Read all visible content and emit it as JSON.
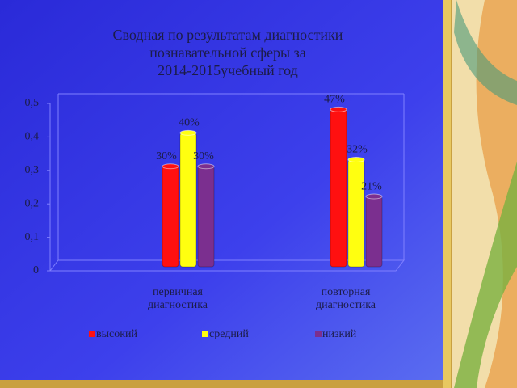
{
  "chart_data": {
    "type": "bar",
    "title": [
      "Сводная по результатам диагностики",
      "познавательной сферы за",
      "2014-2015учебный год"
    ],
    "categories": [
      "первичная диагностика",
      "повторная диагностика"
    ],
    "series": [
      {
        "name": "высокий",
        "color": "#ff1010",
        "values": [
          0.3,
          0.47
        ],
        "value_labels": [
          "30%",
          "47%"
        ]
      },
      {
        "name": "средний",
        "color": "#ffff10",
        "values": [
          0.4,
          0.32
        ],
        "value_labels": [
          "40%",
          "32%"
        ]
      },
      {
        "name": "низкий",
        "color": "#7b2f8f",
        "values": [
          0.3,
          0.21
        ],
        "value_labels": [
          "30%",
          "21%"
        ]
      }
    ],
    "ylim": [
      0,
      0.5
    ],
    "yticks": [
      0,
      {
        "value": 0.1,
        "label": "0,1"
      },
      {
        "value": 0.2,
        "label": "0,2"
      },
      {
        "value": 0.3,
        "label": "0,3"
      },
      {
        "value": 0.4,
        "label": "0,4"
      },
      {
        "value": 0.5,
        "label": "0,5"
      }
    ],
    "grid": false,
    "legend": "bottom"
  }
}
